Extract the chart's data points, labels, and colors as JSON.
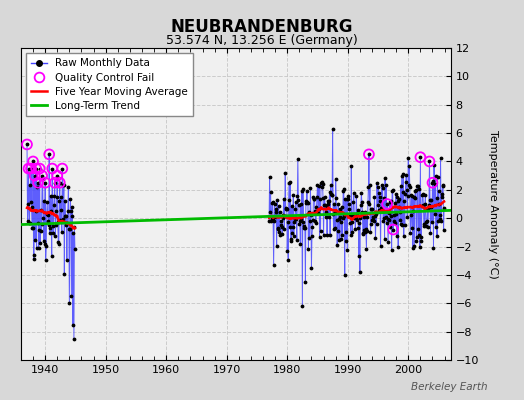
{
  "title": "NEUBRANDENBURG",
  "subtitle": "53.574 N, 13.256 E (Germany)",
  "ylabel": "Temperature Anomaly (°C)",
  "watermark": "Berkeley Earth",
  "xlim": [
    1936,
    2007
  ],
  "ylim": [
    -10,
    12
  ],
  "yticks": [
    -10,
    -8,
    -6,
    -4,
    -2,
    0,
    2,
    4,
    6,
    8,
    10,
    12
  ],
  "xticks": [
    1940,
    1950,
    1960,
    1970,
    1980,
    1990,
    2000
  ],
  "bg_color": "#d8d8d8",
  "plot_bg_color": "#f0f0f0",
  "grid_color": "#c8c8c8",
  "raw_color": "#4444ff",
  "qc_color": "#ff00ff",
  "moving_avg_color": "#ff0000",
  "trend_color": "#00bb00",
  "trend_line": {
    "x": [
      1936,
      2007
    ],
    "y": [
      -0.45,
      0.55
    ]
  },
  "period1_start": 1937.0,
  "period1_end": 1944.917,
  "period2_start": 1977.0,
  "period2_end": 2005.917
}
